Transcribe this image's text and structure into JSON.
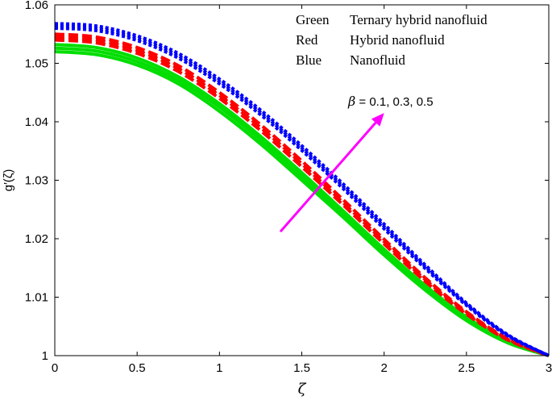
{
  "chart_data": {
    "type": "line",
    "xlabel": "ζ",
    "ylabel": "g′(ζ)",
    "xlim": [
      0,
      3
    ],
    "ylim": [
      1,
      1.06
    ],
    "xticks": [
      "0",
      "0.5",
      "1",
      "1.5",
      "2",
      "2.5",
      "3"
    ],
    "yticks": [
      "1",
      "1.01",
      "1.02",
      "1.03",
      "1.04",
      "1.05",
      "1.06"
    ],
    "grid": false,
    "legend": {
      "placement": "top-right",
      "entries": [
        {
          "key": "Green",
          "desc": "Ternary hybrid nanofluid"
        },
        {
          "key": "Red",
          "desc": "Hybrid nanofluid"
        },
        {
          "key": "Blue",
          "desc": "Nanofluid"
        }
      ]
    },
    "annotation": {
      "symbol": "β",
      "text": " = 0.1, 0.3, 0.5",
      "arrow_from": [
        1.37,
        1.0212
      ],
      "arrow_to": [
        2.0,
        1.0415
      ],
      "color": "#ff00ff"
    },
    "x": [
      0,
      0.25,
      0.5,
      0.75,
      1.0,
      1.25,
      1.5,
      1.75,
      2.0,
      2.25,
      2.5,
      2.75,
      3.0
    ],
    "series": [
      {
        "group": "Green",
        "style": "solid",
        "color": "#00dd00",
        "beta": "0.1",
        "values": [
          1.052,
          1.0515,
          1.0497,
          1.0465,
          1.0418,
          1.0362,
          1.03,
          1.0237,
          1.0172,
          1.0112,
          1.006,
          1.0022,
          1.0
        ]
      },
      {
        "group": "Green",
        "style": "solid",
        "color": "#00dd00",
        "beta": "0.3",
        "values": [
          1.0526,
          1.0521,
          1.0503,
          1.0471,
          1.0425,
          1.0369,
          1.0307,
          1.0243,
          1.0177,
          1.0116,
          1.0063,
          1.0023,
          1.0
        ]
      },
      {
        "group": "Green",
        "style": "solid",
        "color": "#00dd00",
        "beta": "0.5",
        "values": [
          1.0532,
          1.0527,
          1.0509,
          1.0477,
          1.0431,
          1.0375,
          1.0313,
          1.0248,
          1.0182,
          1.012,
          1.0066,
          1.0025,
          1.0
        ]
      },
      {
        "group": "Red",
        "style": "dashed",
        "color": "#ff0000",
        "beta": "0.1",
        "values": [
          1.054,
          1.0535,
          1.0517,
          1.0486,
          1.044,
          1.0385,
          1.0323,
          1.0258,
          1.0191,
          1.0127,
          1.0071,
          1.0027,
          1.0
        ]
      },
      {
        "group": "Red",
        "style": "dashed",
        "color": "#ff0000",
        "beta": "0.3",
        "values": [
          1.0545,
          1.054,
          1.0522,
          1.0491,
          1.0445,
          1.039,
          1.0328,
          1.0262,
          1.0195,
          1.013,
          1.0073,
          1.0028,
          1.0
        ]
      },
      {
        "group": "Red",
        "style": "dashed",
        "color": "#ff0000",
        "beta": "0.5",
        "values": [
          1.055,
          1.0545,
          1.0527,
          1.0496,
          1.045,
          1.0395,
          1.0333,
          1.0267,
          1.0199,
          1.0133,
          1.0075,
          1.0029,
          1.0
        ]
      },
      {
        "group": "Blue",
        "style": "dotted",
        "color": "#0000ff",
        "beta": "0.1",
        "values": [
          1.056,
          1.0556,
          1.0539,
          1.0509,
          1.0465,
          1.0412,
          1.0351,
          1.0286,
          1.0217,
          1.0149,
          1.0086,
          1.0034,
          1.0
        ]
      },
      {
        "group": "Blue",
        "style": "dotted",
        "color": "#0000ff",
        "beta": "0.3",
        "values": [
          1.0564,
          1.056,
          1.0543,
          1.0513,
          1.0469,
          1.0416,
          1.0355,
          1.029,
          1.0221,
          1.0152,
          1.0088,
          1.0035,
          1.0
        ]
      },
      {
        "group": "Blue",
        "style": "dotted",
        "color": "#0000ff",
        "beta": "0.5",
        "values": [
          1.0568,
          1.0564,
          1.0547,
          1.0517,
          1.0473,
          1.042,
          1.0359,
          1.0294,
          1.0225,
          1.0155,
          1.009,
          1.0036,
          1.0
        ]
      }
    ]
  }
}
